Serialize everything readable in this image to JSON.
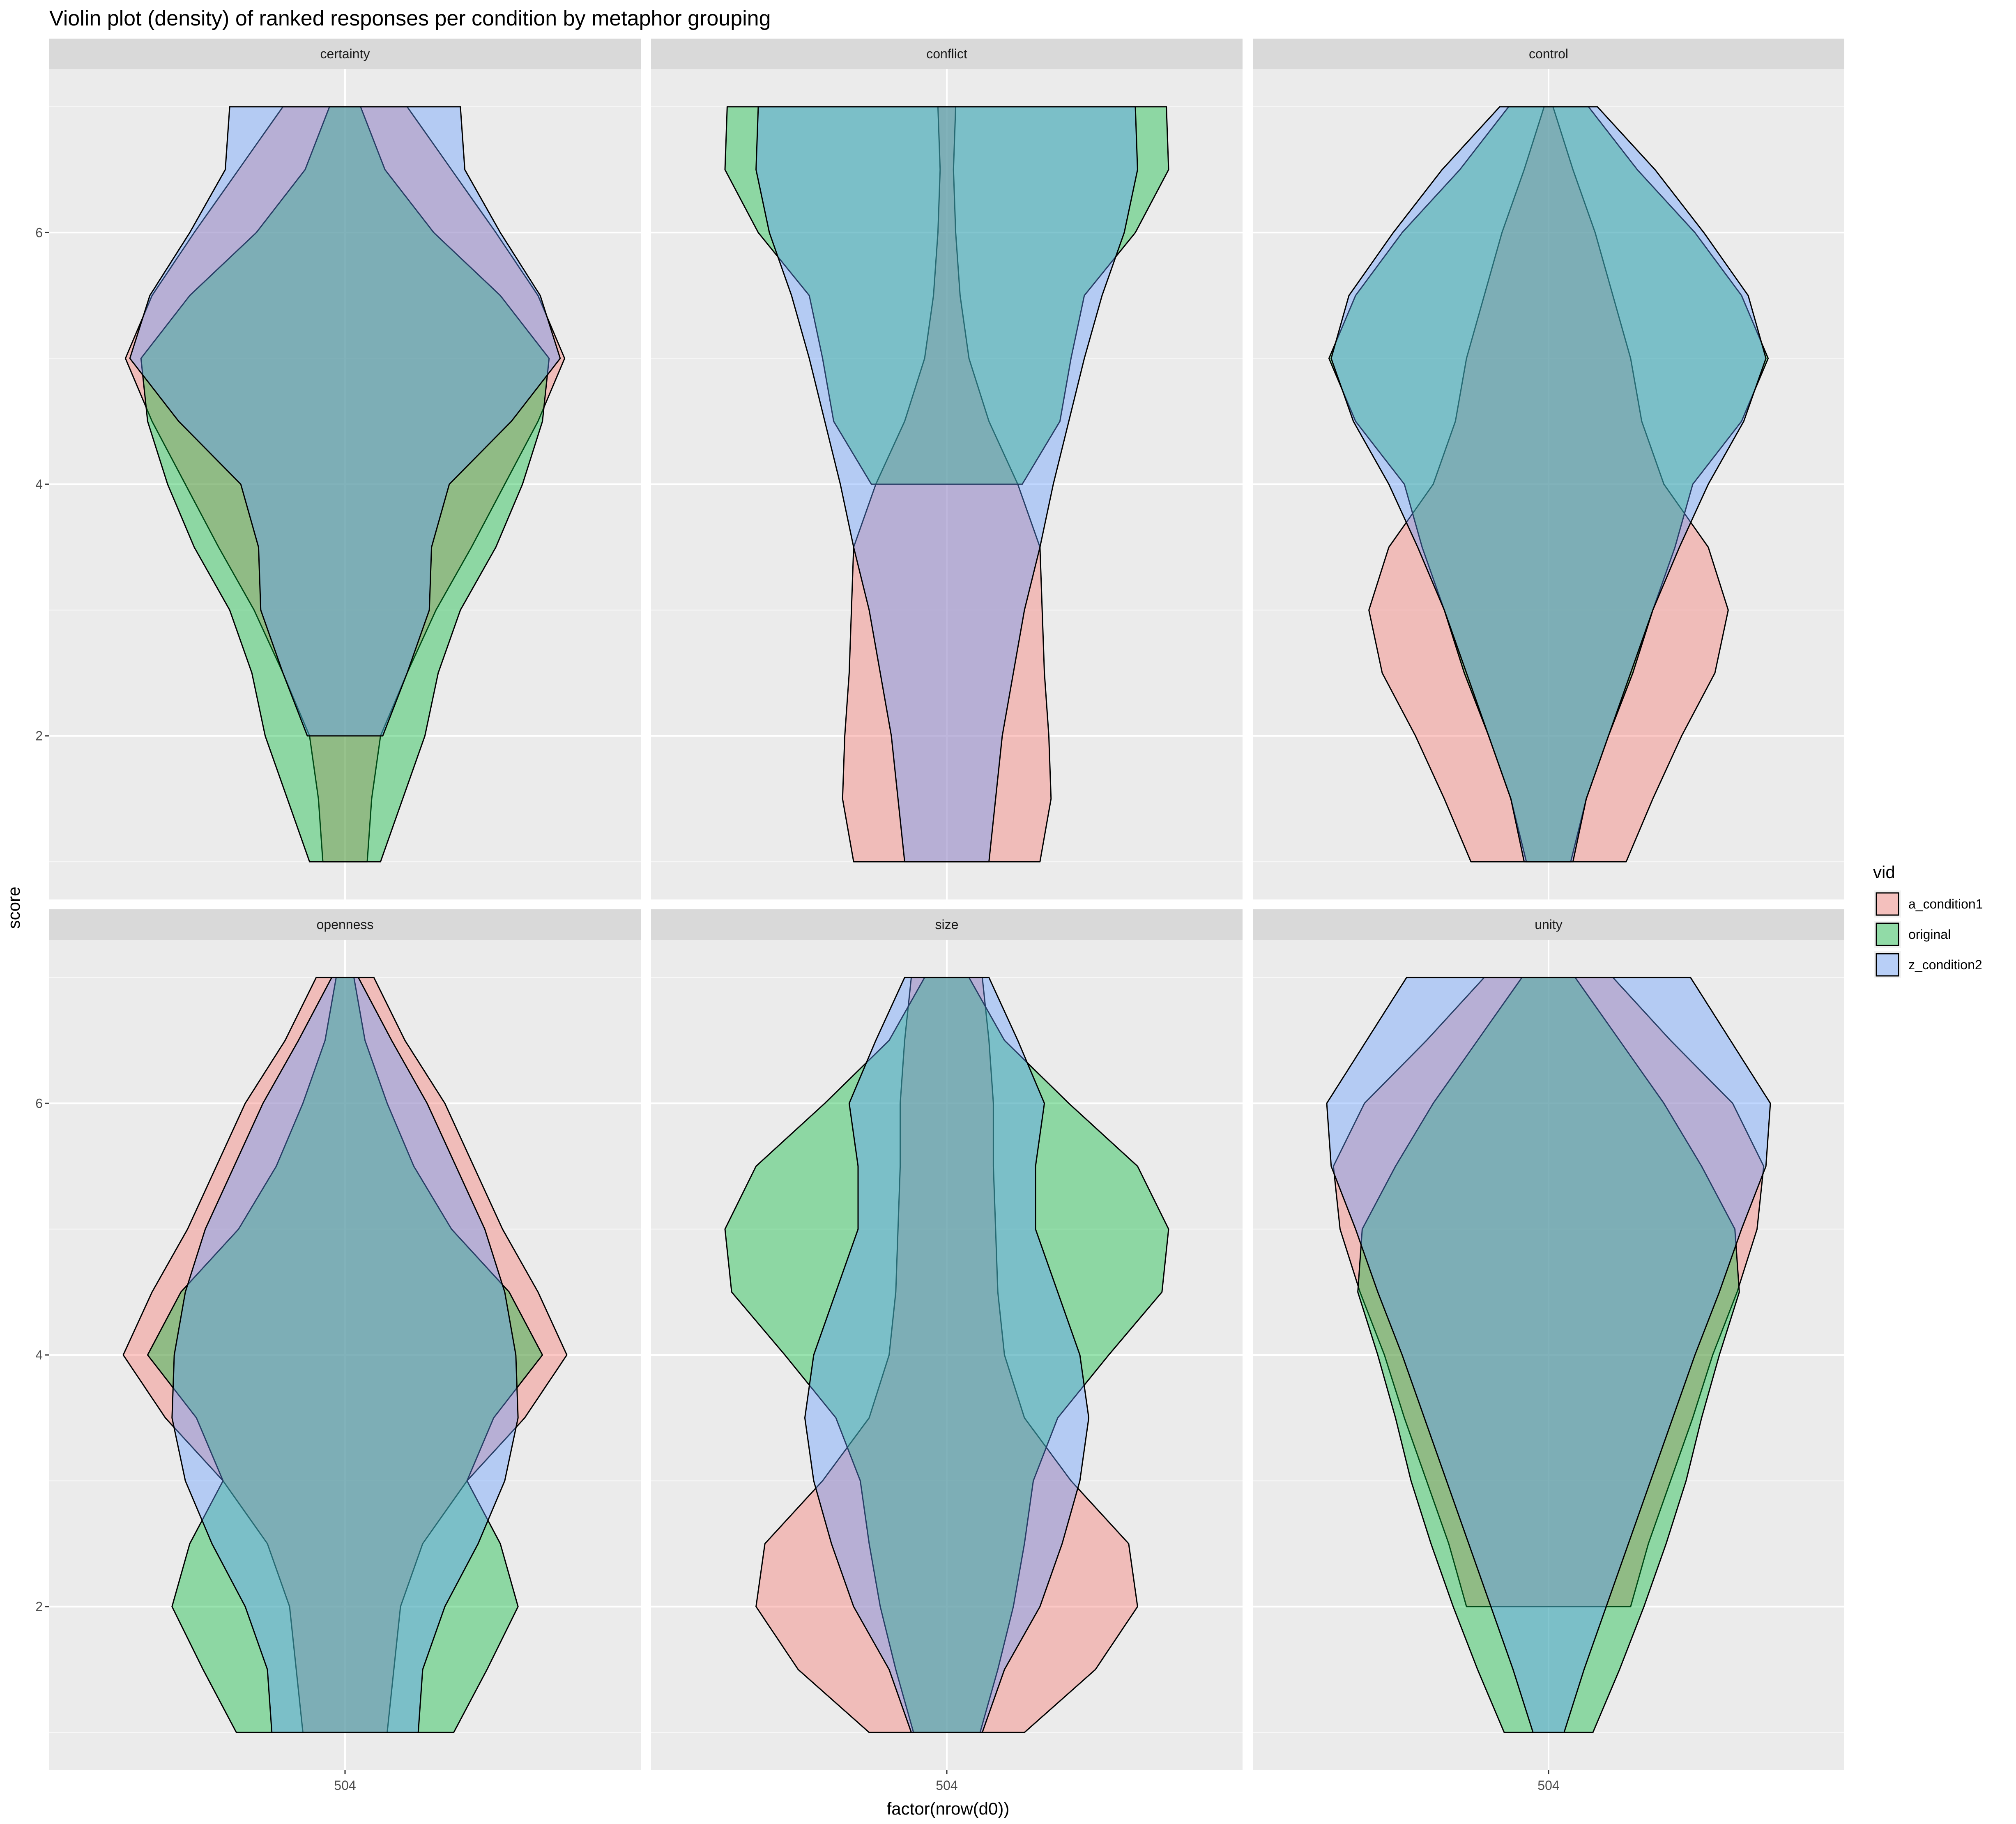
{
  "chart_data": {
    "type": "violin",
    "title": "Violin plot (density) of ranked responses per condition by metaphor grouping",
    "xlabel": "factor(nrow(d0))",
    "ylabel": "score",
    "x_tick_label": "504",
    "y_ticks": [
      "2",
      "4",
      "6"
    ],
    "ylim": [
      0.7,
      7.3
    ],
    "grid": true,
    "legend": {
      "title": "vid",
      "position": "right",
      "items": [
        {
          "name": "a_condition1",
          "color": "#F8766D"
        },
        {
          "name": "original",
          "color": "#00BA38"
        },
        {
          "name": "z_condition2",
          "color": "#619CFF"
        }
      ]
    },
    "panels": [
      {
        "name": "certainty",
        "series": [
          {
            "name": "a_condition1",
            "profile": [
              [
                1,
                0.1
              ],
              [
                1.5,
                0.12
              ],
              [
                2,
                0.16
              ],
              [
                2.5,
                0.28
              ],
              [
                3,
                0.41
              ],
              [
                3.5,
                0.57
              ],
              [
                4,
                0.72
              ],
              [
                4.5,
                0.87
              ],
              [
                5,
                0.99
              ],
              [
                5.5,
                0.87
              ],
              [
                6,
                0.68
              ],
              [
                6.5,
                0.48
              ],
              [
                7,
                0.28
              ]
            ]
          },
          {
            "name": "original",
            "profile": [
              [
                1,
                0.16
              ],
              [
                1.5,
                0.26
              ],
              [
                2,
                0.36
              ],
              [
                2.5,
                0.42
              ],
              [
                3,
                0.52
              ],
              [
                3.5,
                0.68
              ],
              [
                4,
                0.8
              ],
              [
                4.5,
                0.89
              ],
              [
                5,
                0.92
              ],
              [
                5.5,
                0.7
              ],
              [
                6,
                0.4
              ],
              [
                6.5,
                0.18
              ],
              [
                7,
                0.07
              ]
            ]
          },
          {
            "name": "z_condition2",
            "profile": [
              [
                2,
                0.17
              ],
              [
                2.5,
                0.28
              ],
              [
                3,
                0.38
              ],
              [
                3.5,
                0.39
              ],
              [
                4,
                0.47
              ],
              [
                4.5,
                0.75
              ],
              [
                5,
                0.97
              ],
              [
                5.5,
                0.88
              ],
              [
                6,
                0.7
              ],
              [
                6.5,
                0.54
              ],
              [
                7,
                0.52
              ]
            ]
          }
        ]
      },
      {
        "name": "conflict",
        "series": [
          {
            "name": "a_condition1",
            "profile": [
              [
                1,
                0.42
              ],
              [
                1.5,
                0.47
              ],
              [
                2,
                0.46
              ],
              [
                2.5,
                0.44
              ],
              [
                3,
                0.43
              ],
              [
                3.5,
                0.42
              ],
              [
                4,
                0.32
              ],
              [
                4.5,
                0.19
              ],
              [
                5,
                0.1
              ],
              [
                5.5,
                0.06
              ],
              [
                6,
                0.04
              ],
              [
                6.5,
                0.03
              ],
              [
                7,
                0.04
              ]
            ]
          },
          {
            "name": "original",
            "profile": [
              [
                4,
                0.34
              ],
              [
                4.5,
                0.51
              ],
              [
                5,
                0.56
              ],
              [
                5.5,
                0.62
              ],
              [
                6,
                0.85
              ],
              [
                6.5,
                1.0
              ],
              [
                7,
                0.99
              ]
            ]
          },
          {
            "name": "z_condition2",
            "profile": [
              [
                1,
                0.19
              ],
              [
                1.5,
                0.22
              ],
              [
                2,
                0.25
              ],
              [
                2.5,
                0.3
              ],
              [
                3,
                0.35
              ],
              [
                3.5,
                0.42
              ],
              [
                4,
                0.48
              ],
              [
                4.5,
                0.55
              ],
              [
                5,
                0.62
              ],
              [
                5.5,
                0.7
              ],
              [
                6,
                0.8
              ],
              [
                6.5,
                0.86
              ],
              [
                7,
                0.85
              ]
            ]
          }
        ]
      },
      {
        "name": "control",
        "series": [
          {
            "name": "a_condition1",
            "profile": [
              [
                1,
                0.35
              ],
              [
                1.5,
                0.47
              ],
              [
                2,
                0.6
              ],
              [
                2.5,
                0.75
              ],
              [
                3,
                0.81
              ],
              [
                3.5,
                0.72
              ],
              [
                4,
                0.52
              ],
              [
                4.5,
                0.42
              ],
              [
                5,
                0.37
              ],
              [
                5.5,
                0.29
              ],
              [
                6,
                0.21
              ],
              [
                6.5,
                0.11
              ],
              [
                7,
                0.02
              ]
            ]
          },
          {
            "name": "original",
            "profile": [
              [
                1,
                0.1
              ],
              [
                1.5,
                0.17
              ],
              [
                2,
                0.27
              ],
              [
                2.5,
                0.38
              ],
              [
                3,
                0.47
              ],
              [
                3.5,
                0.57
              ],
              [
                4,
                0.65
              ],
              [
                4.5,
                0.87
              ],
              [
                5,
                0.99
              ],
              [
                5.5,
                0.87
              ],
              [
                6,
                0.66
              ],
              [
                6.5,
                0.4
              ],
              [
                7,
                0.18
              ]
            ]
          },
          {
            "name": "z_condition2",
            "profile": [
              [
                1,
                0.11
              ],
              [
                1.5,
                0.17
              ],
              [
                2,
                0.27
              ],
              [
                2.5,
                0.37
              ],
              [
                3,
                0.47
              ],
              [
                3.5,
                0.59
              ],
              [
                4,
                0.72
              ],
              [
                4.5,
                0.88
              ],
              [
                5,
                0.98
              ],
              [
                5.5,
                0.9
              ],
              [
                6,
                0.7
              ],
              [
                6.5,
                0.48
              ],
              [
                7,
                0.22
              ]
            ]
          }
        ]
      },
      {
        "name": "openness",
        "series": [
          {
            "name": "a_condition1",
            "profile": [
              [
                1,
                0.19
              ],
              [
                1.5,
                0.22
              ],
              [
                2,
                0.25
              ],
              [
                2.5,
                0.35
              ],
              [
                3,
                0.55
              ],
              [
                3.5,
                0.81
              ],
              [
                4,
                1.0
              ],
              [
                4.5,
                0.87
              ],
              [
                5,
                0.71
              ],
              [
                5.5,
                0.58
              ],
              [
                6,
                0.45
              ],
              [
                6.5,
                0.27
              ],
              [
                7,
                0.13
              ]
            ]
          },
          {
            "name": "original",
            "profile": [
              [
                1,
                0.49
              ],
              [
                1.5,
                0.64
              ],
              [
                2,
                0.78
              ],
              [
                2.5,
                0.7
              ],
              [
                3,
                0.55
              ],
              [
                3.5,
                0.67
              ],
              [
                4,
                0.89
              ],
              [
                4.5,
                0.74
              ],
              [
                5,
                0.48
              ],
              [
                5.5,
                0.31
              ],
              [
                6,
                0.19
              ],
              [
                6.5,
                0.09
              ],
              [
                7,
                0.04
              ]
            ]
          },
          {
            "name": "z_condition2",
            "profile": [
              [
                1,
                0.33
              ],
              [
                1.5,
                0.35
              ],
              [
                2,
                0.45
              ],
              [
                2.5,
                0.6
              ],
              [
                3,
                0.72
              ],
              [
                3.5,
                0.78
              ],
              [
                4,
                0.77
              ],
              [
                4.5,
                0.72
              ],
              [
                5,
                0.63
              ],
              [
                5.5,
                0.5
              ],
              [
                6,
                0.37
              ],
              [
                6.5,
                0.21
              ],
              [
                7,
                0.06
              ]
            ]
          }
        ]
      },
      {
        "name": "size",
        "series": [
          {
            "name": "a_condition1",
            "profile": [
              [
                1,
                0.35
              ],
              [
                1.5,
                0.67
              ],
              [
                2,
                0.86
              ],
              [
                2.5,
                0.82
              ],
              [
                3,
                0.56
              ],
              [
                3.5,
                0.35
              ],
              [
                4,
                0.26
              ],
              [
                4.5,
                0.23
              ],
              [
                5,
                0.22
              ],
              [
                5.5,
                0.21
              ],
              [
                6,
                0.21
              ],
              [
                6.5,
                0.19
              ],
              [
                7,
                0.16
              ]
            ]
          },
          {
            "name": "original",
            "profile": [
              [
                1,
                0.15
              ],
              [
                1.5,
                0.23
              ],
              [
                2,
                0.3
              ],
              [
                2.5,
                0.35
              ],
              [
                3,
                0.39
              ],
              [
                3.5,
                0.5
              ],
              [
                4,
                0.73
              ],
              [
                4.5,
                0.97
              ],
              [
                5,
                1.0
              ],
              [
                5.5,
                0.86
              ],
              [
                6,
                0.55
              ],
              [
                6.5,
                0.26
              ],
              [
                7,
                0.1
              ]
            ]
          },
          {
            "name": "z_condition2",
            "profile": [
              [
                1,
                0.16
              ],
              [
                1.5,
                0.26
              ],
              [
                2,
                0.42
              ],
              [
                2.5,
                0.52
              ],
              [
                3,
                0.6
              ],
              [
                3.5,
                0.64
              ],
              [
                4,
                0.6
              ],
              [
                4.5,
                0.5
              ],
              [
                5,
                0.4
              ],
              [
                5.5,
                0.4
              ],
              [
                6,
                0.44
              ],
              [
                6.5,
                0.32
              ],
              [
                7,
                0.19
              ]
            ]
          }
        ]
      },
      {
        "name": "unity",
        "series": [
          {
            "name": "a_condition1",
            "profile": [
              [
                2,
                0.37
              ],
              [
                2.5,
                0.45
              ],
              [
                3,
                0.55
              ],
              [
                3.5,
                0.65
              ],
              [
                4,
                0.74
              ],
              [
                4.5,
                0.85
              ],
              [
                5,
                0.94
              ],
              [
                5.5,
                0.97
              ],
              [
                6,
                0.83
              ],
              [
                6.5,
                0.55
              ],
              [
                7,
                0.29
              ]
            ]
          },
          {
            "name": "original",
            "profile": [
              [
                1,
                0.2
              ],
              [
                1.5,
                0.32
              ],
              [
                2,
                0.43
              ],
              [
                2.5,
                0.53
              ],
              [
                3,
                0.62
              ],
              [
                3.5,
                0.69
              ],
              [
                4,
                0.77
              ],
              [
                4.5,
                0.86
              ],
              [
                5,
                0.84
              ],
              [
                5.5,
                0.69
              ],
              [
                6,
                0.52
              ],
              [
                6.5,
                0.32
              ],
              [
                7,
                0.12
              ]
            ]
          },
          {
            "name": "z_condition2",
            "profile": [
              [
                1,
                0.07
              ],
              [
                1.5,
                0.16
              ],
              [
                2,
                0.26
              ],
              [
                2.5,
                0.36
              ],
              [
                3,
                0.46
              ],
              [
                3.5,
                0.56
              ],
              [
                4,
                0.66
              ],
              [
                4.5,
                0.77
              ],
              [
                5,
                0.87
              ],
              [
                5.5,
                0.98
              ],
              [
                6,
                1.0
              ],
              [
                6.5,
                0.82
              ],
              [
                7,
                0.64
              ]
            ]
          }
        ]
      }
    ]
  }
}
